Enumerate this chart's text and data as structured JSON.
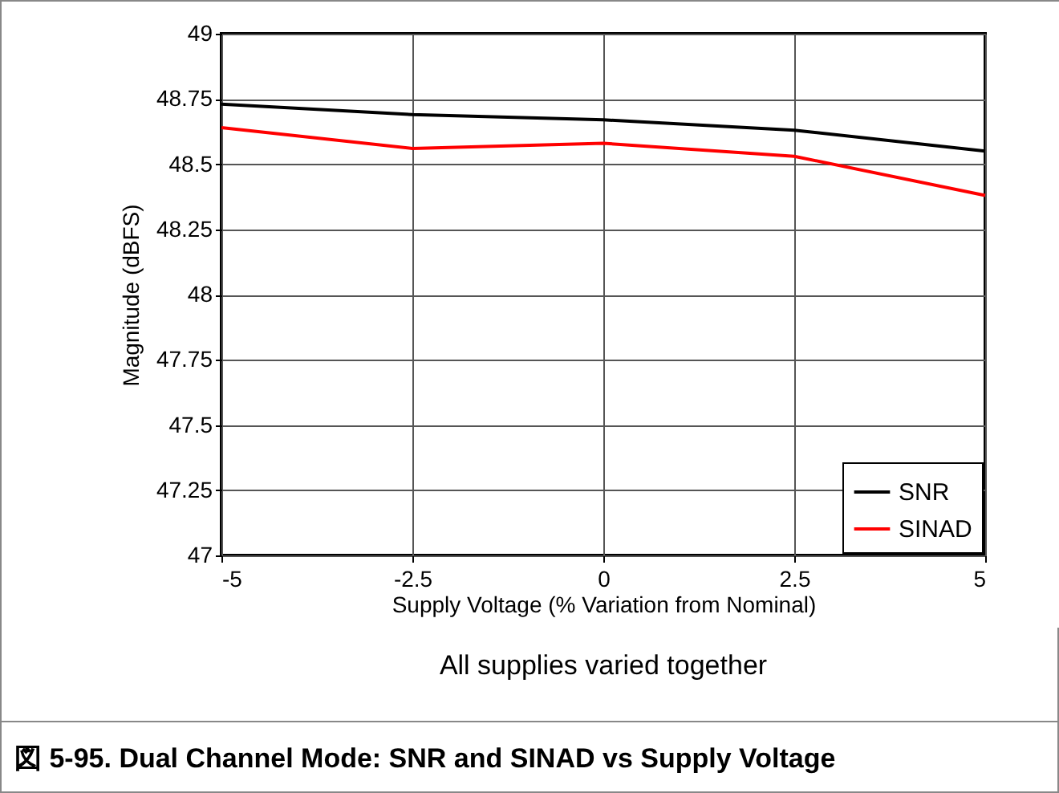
{
  "chart_data": {
    "type": "line",
    "title": "図 5-95. Dual Channel Mode: SNR and SINAD vs Supply Voltage",
    "xlabel": "Supply Voltage  (% Variation from Nominal)",
    "ylabel": "Magnitude  (dBFS)",
    "annotations": [
      "All supplies varied together"
    ],
    "x": [
      -5,
      -2.5,
      0,
      2.5,
      5
    ],
    "series": [
      {
        "name": "SNR",
        "color": "#000000",
        "values": [
          48.73,
          48.69,
          48.67,
          48.63,
          48.55
        ]
      },
      {
        "name": "SINAD",
        "color": "#ff0000",
        "values": [
          48.64,
          48.56,
          48.58,
          48.53,
          48.38
        ]
      }
    ],
    "xlim": [
      -5,
      5
    ],
    "xticks": [
      -5,
      -2.5,
      0,
      2.5,
      5
    ],
    "ylim": [
      47,
      49
    ],
    "yticks": [
      47,
      47.25,
      47.5,
      47.75,
      48,
      48.25,
      48.5,
      48.75,
      49
    ],
    "grid": true,
    "legend": "bottom right",
    "marker": "none",
    "line_style": "solid"
  }
}
